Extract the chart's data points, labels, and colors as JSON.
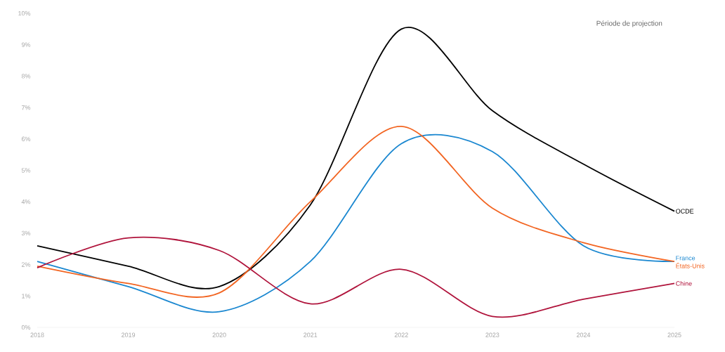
{
  "chart_data": {
    "type": "line",
    "x": [
      2018,
      2019,
      2020,
      2021,
      2022,
      2023,
      2024,
      2025
    ],
    "series": [
      {
        "name": "OCDE",
        "color": "#000000",
        "values": [
          2.6,
          1.95,
          1.3,
          3.9,
          9.5,
          6.9,
          5.2,
          3.7
        ]
      },
      {
        "name": "France",
        "color": "#1a87d0",
        "values": [
          2.1,
          1.3,
          0.5,
          2.1,
          5.85,
          5.6,
          2.6,
          2.1
        ]
      },
      {
        "name": "États-Unis",
        "color": "#f26522",
        "values": [
          1.95,
          1.4,
          1.1,
          4.0,
          6.4,
          3.8,
          2.7,
          2.1
        ]
      },
      {
        "name": "Chine",
        "color": "#b0143c",
        "values": [
          1.9,
          2.85,
          2.45,
          0.75,
          1.85,
          0.35,
          0.9,
          1.4
        ]
      }
    ],
    "xlim": [
      2018,
      2025
    ],
    "xticks": [
      2018,
      2019,
      2020,
      2021,
      2022,
      2023,
      2024,
      2025
    ],
    "ylim": [
      0,
      10
    ],
    "yticks": [
      {
        "value": 0,
        "label": "0%"
      },
      {
        "value": 1,
        "label": "1%"
      },
      {
        "value": 2,
        "label": "2%"
      },
      {
        "value": 3,
        "label": "3%"
      },
      {
        "value": 4,
        "label": "4%"
      },
      {
        "value": 5,
        "label": "5%"
      },
      {
        "value": 6,
        "label": "6%"
      },
      {
        "value": 7,
        "label": "7%"
      },
      {
        "value": 8,
        "label": "8%"
      },
      {
        "value": 9,
        "label": "9%"
      },
      {
        "value": 10,
        "label": "10%"
      }
    ],
    "annotations": [
      "Période de projection"
    ],
    "grid": false,
    "legend": false
  }
}
